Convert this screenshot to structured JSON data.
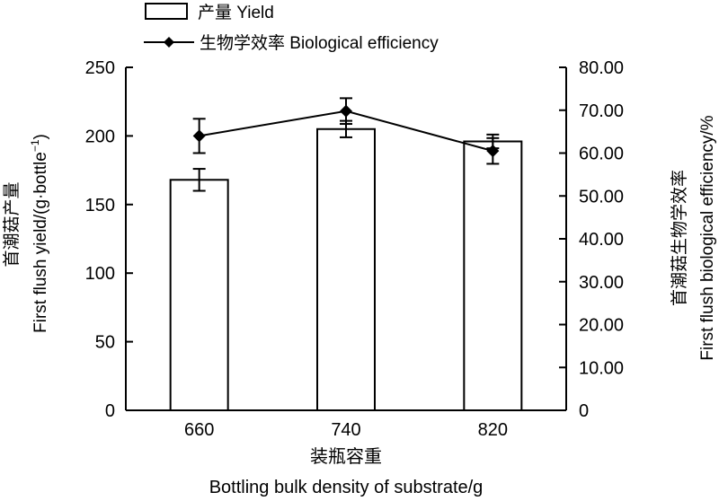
{
  "chart_data": {
    "type": "bar",
    "categories": [
      "660",
      "740",
      "820"
    ],
    "xlabel_cn": "装瓶容重",
    "xlabel_en": "Bottling bulk density of substrate/g",
    "ylabel_left_cn": "首潮菇产量",
    "ylabel_left_en": "First flush yield/(g·bottle",
    "ylabel_left_sup": "−1",
    "ylabel_left_close": ")",
    "ylabel_right_cn": "首潮菇生物学效率",
    "ylabel_right_en": "First flush biological efficiency/%",
    "ylim_left": [
      0,
      250
    ],
    "yticks_left": [
      "0",
      "50",
      "100",
      "150",
      "200",
      "250"
    ],
    "ylim_right": [
      0,
      80
    ],
    "yticks_right": [
      "0",
      "10.00",
      "20.00",
      "30.00",
      "40.00",
      "50.00",
      "60.00",
      "70.00",
      "80.00"
    ],
    "grid": false,
    "legend_position": "top",
    "series": [
      {
        "name": "产量 Yield",
        "type": "bar",
        "axis": "left",
        "values": [
          168,
          205,
          196
        ],
        "errors": [
          8,
          6,
          5
        ]
      },
      {
        "name": "生物学效率 Biological efficiency",
        "type": "line",
        "axis": "right",
        "values": [
          64,
          69.8,
          60.5
        ],
        "errors": [
          4,
          3,
          3
        ]
      }
    ]
  }
}
